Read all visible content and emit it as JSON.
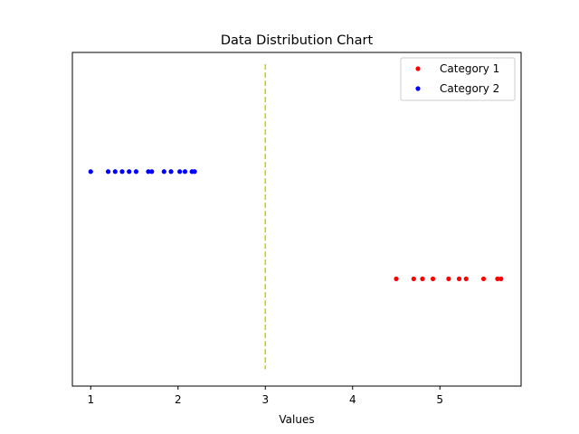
{
  "chart_data": {
    "type": "scatter",
    "title": "Data Distribution Chart",
    "xlabel": "Values",
    "ylabel": "",
    "xlim": [
      0.79,
      5.93
    ],
    "ylim": [
      0.3,
      1.7
    ],
    "xticks": [
      1,
      2,
      3,
      4,
      5
    ],
    "xtick_labels": [
      "1",
      "2",
      "3",
      "4",
      "5"
    ],
    "yticks_visible": false,
    "grid": false,
    "legend_position": "top-right",
    "series": [
      {
        "name": "Category 1",
        "color": "#ff0000",
        "y": 0.75,
        "x": [
          4.5,
          4.7,
          4.8,
          4.92,
          5.1,
          5.22,
          5.3,
          5.5,
          5.66,
          5.7
        ]
      },
      {
        "name": "Category 2",
        "color": "#0000ff",
        "y": 1.2,
        "x": [
          1.0,
          1.2,
          1.28,
          1.36,
          1.44,
          1.52,
          1.66,
          1.7,
          1.84,
          1.92,
          2.02,
          2.08,
          2.16,
          2.19
        ]
      }
    ],
    "reference_line": {
      "x": 3.0,
      "y_range": [
        0.37,
        1.65
      ],
      "color": "#cccc00",
      "style": "dashed"
    }
  }
}
